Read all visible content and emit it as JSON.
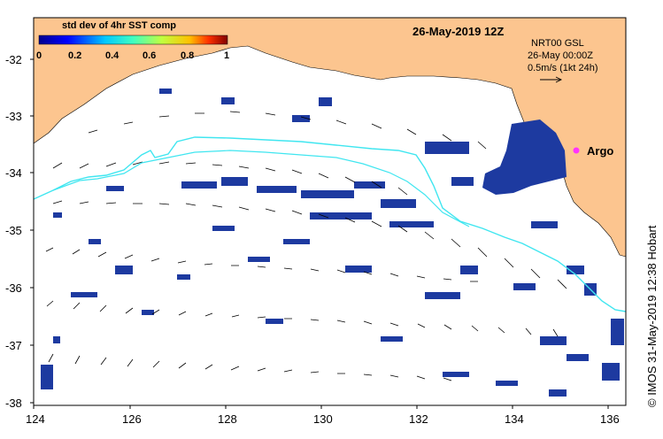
{
  "map": {
    "title_date": "26-May-2019 12Z",
    "colorbar": {
      "label": "std dev of 4hr SST comp",
      "ticks": [
        "0",
        "0.2",
        "0.4",
        "0.6",
        "0.8",
        "1"
      ]
    },
    "current_info": {
      "line1": "NRT00 GSL",
      "line2": "26-May 00:00Z",
      "line3": "0.5m/s (1kt 24h)"
    },
    "argo_label": "Argo",
    "credit": "© IMOS 31-May-2019 12:38 Hobart",
    "lat_ticks": [
      "-32",
      "-33",
      "-34",
      "-35",
      "-36",
      "-37",
      "-38"
    ],
    "lon_ticks": [
      "124",
      "126",
      "128",
      "130",
      "132",
      "134",
      "136"
    ],
    "colors": {
      "land": "#fcc58f",
      "ocean": "#ffffff",
      "sst_blob": "#1d3aa0",
      "track": "#40e6f0",
      "argo_marker": "#ff33ff"
    }
  }
}
